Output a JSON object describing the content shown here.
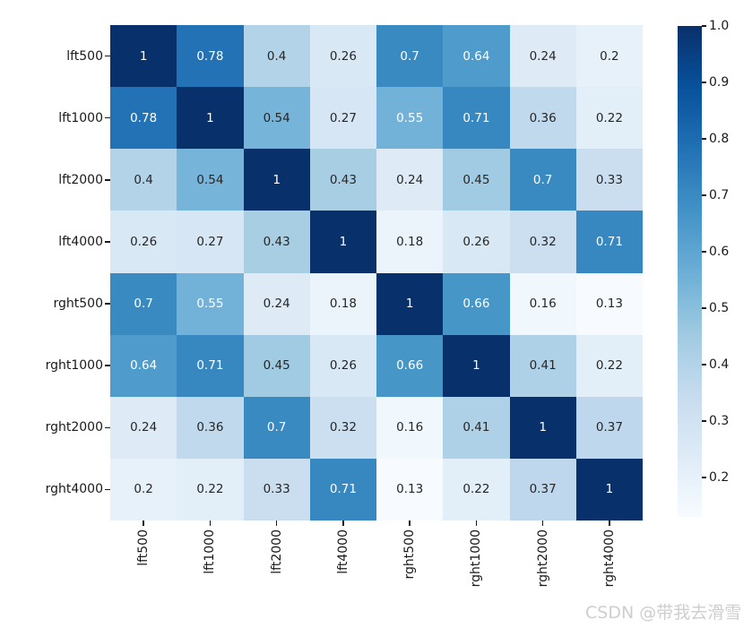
{
  "chart_data": {
    "type": "heatmap",
    "title": "",
    "xlabel": "",
    "ylabel": "",
    "categories": [
      "lft500",
      "lft1000",
      "lft2000",
      "lft4000",
      "rght500",
      "rght1000",
      "rght2000",
      "rght4000"
    ],
    "matrix": [
      [
        1,
        0.78,
        0.4,
        0.26,
        0.7,
        0.64,
        0.24,
        0.2
      ],
      [
        0.78,
        1,
        0.54,
        0.27,
        0.55,
        0.71,
        0.36,
        0.22
      ],
      [
        0.4,
        0.54,
        1,
        0.43,
        0.24,
        0.45,
        0.7,
        0.33
      ],
      [
        0.26,
        0.27,
        0.43,
        1,
        0.18,
        0.26,
        0.32,
        0.71
      ],
      [
        0.7,
        0.55,
        0.24,
        0.18,
        1,
        0.66,
        0.16,
        0.13
      ],
      [
        0.64,
        0.71,
        0.45,
        0.26,
        0.66,
        1,
        0.41,
        0.22
      ],
      [
        0.24,
        0.36,
        0.7,
        0.32,
        0.16,
        0.41,
        1,
        0.37
      ],
      [
        0.2,
        0.22,
        0.33,
        0.71,
        0.13,
        0.22,
        0.37,
        1
      ]
    ],
    "annotated": true,
    "colormap": "Blues",
    "vmin": 0.13,
    "vmax": 1.0,
    "grid": false,
    "colorbar": {
      "position": "right",
      "tick_labels": [
        "1.0",
        "0.9",
        "0.8",
        "0.7",
        "0.6",
        "0.5",
        "0.4",
        "0.3",
        "0.2"
      ],
      "tick_values": [
        1.0,
        0.9,
        0.8,
        0.7,
        0.6,
        0.5,
        0.4,
        0.3,
        0.2
      ]
    }
  },
  "colors": {
    "background": "#ffffff",
    "blues_stops": [
      "#f7fbff",
      "#deebf7",
      "#c6dbef",
      "#9ecae1",
      "#6baed6",
      "#4292c6",
      "#2171b5",
      "#08519c",
      "#08306b"
    ],
    "annot_dark": "#262626",
    "annot_light": "#ffffff",
    "tick_color": "#1a1a1a",
    "watermark_color": "#cbcbcb"
  },
  "watermark": {
    "text": "CSDN @带我去滑雪"
  }
}
